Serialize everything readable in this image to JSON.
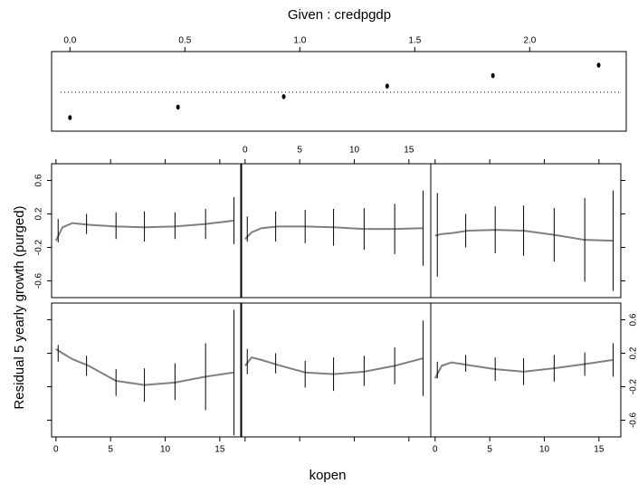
{
  "chart_data": {
    "type": "coplot",
    "title": "Given : credpgdp",
    "xlabel": "kopen",
    "ylabel": "Residual 5 yearly growth (purged)",
    "given": {
      "xlim": [
        -0.08,
        2.42
      ],
      "xticks": [
        {
          "value": 0,
          "label": "0.0"
        },
        0.5,
        {
          "value": 1,
          "label": "1.0"
        },
        1.5,
        {
          "value": 2,
          "label": "2.0"
        }
      ],
      "values": [
        0.0,
        0.47,
        0.93,
        1.38,
        1.84,
        2.3
      ]
    },
    "xlim": [
      -0.4,
      17
    ],
    "xticks": [
      0,
      5,
      10,
      15
    ],
    "ylim": [
      -0.8,
      0.8
    ],
    "yticks": [
      -0.6,
      -0.2,
      0.2,
      0.6
    ],
    "x": [
      0.2,
      2.8,
      5.5,
      8.1,
      10.9,
      13.7,
      16.3
    ],
    "curve_x": [
      0,
      0.6,
      1.5,
      3,
      5.5,
      8.1,
      10.9,
      13.7,
      16.3
    ],
    "curve_color": "#808080",
    "panels": [
      {
        "values": [
          0.2,
          0.05,
          -0.15,
          -0.18,
          -0.14,
          -0.08,
          -0.03
        ],
        "errors": [
          0.1,
          0.12,
          0.16,
          0.2,
          0.22,
          0.4,
          0.75
        ],
        "curve": [
          0.25,
          0.2,
          0.13,
          0.05,
          -0.13,
          -0.18,
          -0.15,
          -0.08,
          -0.03
        ]
      },
      {
        "values": [
          0.1,
          0.08,
          -0.05,
          -0.05,
          -0.01,
          0.05,
          0.14
        ],
        "errors": [
          0.15,
          0.12,
          0.16,
          0.2,
          0.18,
          0.22,
          0.45
        ],
        "curve": [
          0.05,
          0.15,
          0.12,
          0.06,
          -0.03,
          -0.05,
          -0.02,
          0.05,
          0.14
        ]
      },
      {
        "values": [
          0.0,
          0.08,
          0.01,
          -0.02,
          0.02,
          0.07,
          0.12
        ],
        "errors": [
          0.1,
          0.1,
          0.14,
          0.16,
          0.16,
          0.14,
          0.2
        ],
        "curve": [
          -0.1,
          0.05,
          0.09,
          0.06,
          0.01,
          -0.02,
          0.02,
          0.07,
          0.12
        ]
      },
      {
        "values": [
          0.0,
          0.08,
          0.06,
          0.05,
          0.06,
          0.08,
          0.12
        ],
        "errors": [
          0.14,
          0.12,
          0.16,
          0.18,
          0.16,
          0.18,
          0.28
        ],
        "curve": [
          -0.12,
          0.04,
          0.09,
          0.07,
          0.05,
          0.04,
          0.05,
          0.08,
          0.12
        ]
      },
      {
        "values": [
          0.02,
          0.05,
          0.05,
          0.04,
          0.02,
          0.02,
          0.03
        ],
        "errors": [
          0.15,
          0.18,
          0.2,
          0.22,
          0.25,
          0.3,
          0.45
        ],
        "curve": [
          -0.1,
          -0.02,
          0.03,
          0.05,
          0.05,
          0.04,
          0.02,
          0.02,
          0.03
        ]
      },
      {
        "values": [
          -0.05,
          0,
          0.01,
          0,
          -0.05,
          -0.11,
          -0.12
        ],
        "errors": [
          0.5,
          0.2,
          0.28,
          0.3,
          0.32,
          0.5,
          0.6
        ],
        "curve": [
          -0.06,
          -0.04,
          -0.03,
          0,
          0.01,
          0,
          -0.05,
          -0.11,
          -0.12
        ]
      }
    ]
  }
}
